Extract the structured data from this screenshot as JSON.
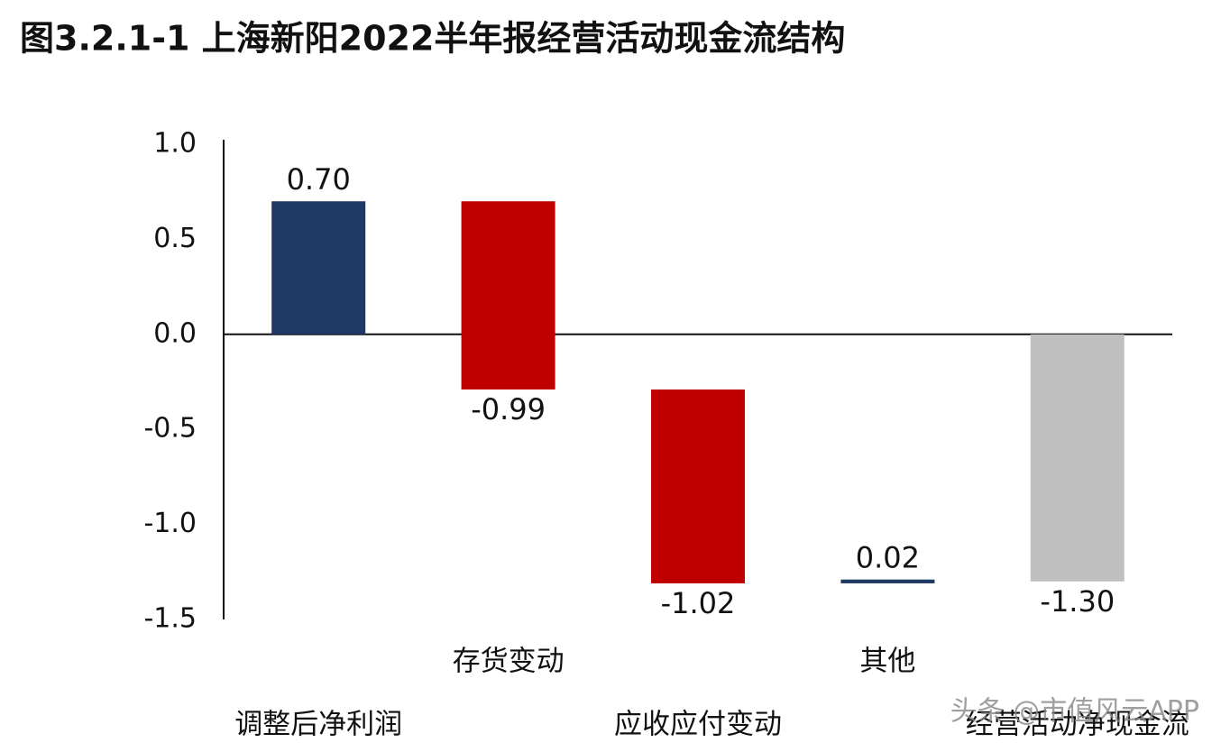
{
  "chart_data": {
    "type": "waterfall",
    "title": "图3.2.1-1 上海新阳2022半年报经营活动现金流结构",
    "categories": [
      "调整后净利润",
      "存货变动",
      "应收应付变动",
      "其他",
      "经营活动净现金流"
    ],
    "values": [
      0.7,
      -0.99,
      -1.02,
      0.02,
      -1.3
    ],
    "value_labels": [
      "0.70",
      "-0.99",
      "-1.02",
      "0.02",
      "-1.30"
    ],
    "colors": [
      "#1f3864",
      "#c00000",
      "#c00000",
      "#1f3864",
      "#bfbfbf"
    ],
    "ylim": [
      -1.5,
      1.0
    ],
    "yticks": [
      {
        "value": 1.0,
        "label": "1.0"
      },
      {
        "value": 0.5,
        "label": "0.5"
      },
      {
        "value": 0.0,
        "label": "0.0"
      },
      {
        "value": -0.5,
        "label": "-0.5"
      },
      {
        "value": -1.0,
        "label": "-1.0"
      },
      {
        "value": -1.5,
        "label": "-1.5"
      }
    ],
    "grid": false,
    "watermark": "头条 @市值风云APP"
  }
}
